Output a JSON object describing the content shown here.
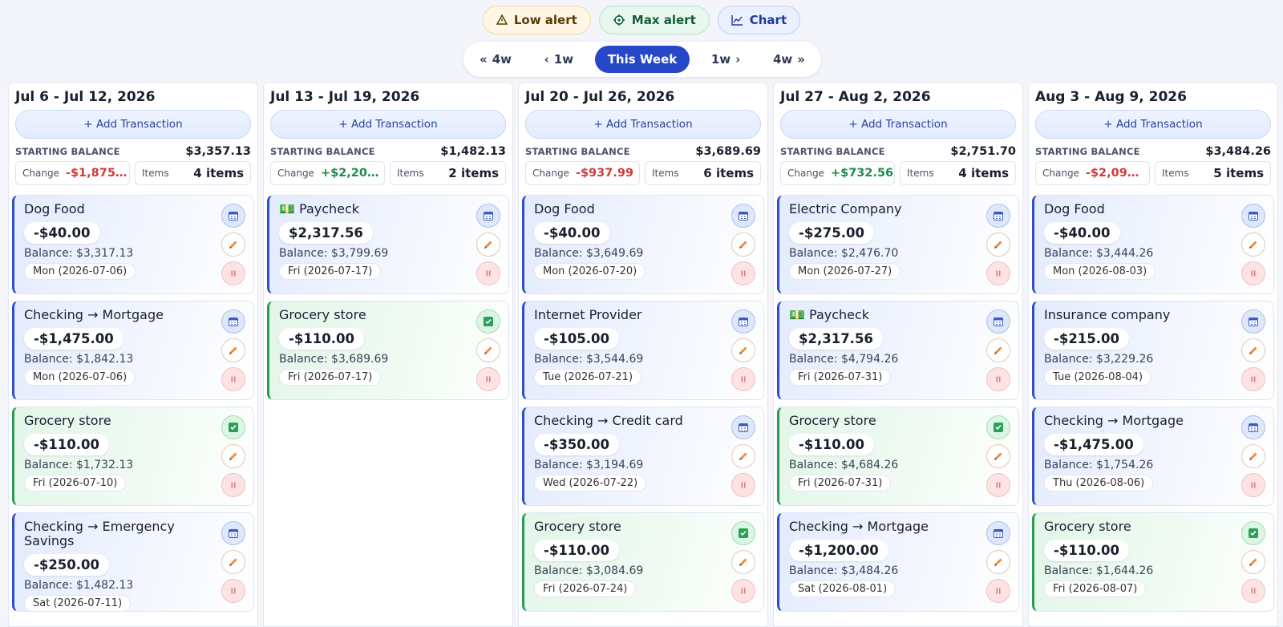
{
  "toolbar": {
    "low_alert": "Low alert",
    "max_alert": "Max alert",
    "chart": "Chart"
  },
  "nav": {
    "back4": "4w",
    "back1": "1w",
    "current": "This Week",
    "fwd1": "1w",
    "fwd4": "4w"
  },
  "weeks": [
    {
      "title": "Jul 6 - Jul 12, 2026",
      "add": "+ Add Transaction",
      "starting_label": "STARTING BALANCE",
      "starting_balance": "$3,357.13",
      "change_label": "Change",
      "change": "-$1,875…",
      "items_label": "Items",
      "items": "4 items",
      "transactions": [
        {
          "name": "Dog Food",
          "amount": "-$40.00",
          "balance": "Balance: $3,317.13",
          "date": "Mon (2026-07-06)",
          "cleared": false
        },
        {
          "name": "Checking → Mortgage",
          "amount": "-$1,475.00",
          "balance": "Balance: $1,842.13",
          "date": "Mon (2026-07-06)",
          "cleared": false
        },
        {
          "name": "Grocery store",
          "amount": "-$110.00",
          "balance": "Balance: $1,732.13",
          "date": "Fri (2026-07-10)",
          "cleared": true
        },
        {
          "name": "Checking → Emergency Savings",
          "amount": "-$250.00",
          "balance": "Balance: $1,482.13",
          "date": "Sat (2026-07-11)",
          "cleared": false
        }
      ]
    },
    {
      "title": "Jul 13 - Jul 19, 2026",
      "add": "+ Add Transaction",
      "starting_label": "STARTING BALANCE",
      "starting_balance": "$1,482.13",
      "change_label": "Change",
      "change": "+$2,20…",
      "items_label": "Items",
      "items": "2 items",
      "transactions": [
        {
          "name": "💵 Paycheck",
          "amount": "$2,317.56",
          "balance": "Balance: $3,799.69",
          "date": "Fri (2026-07-17)",
          "cleared": false
        },
        {
          "name": "Grocery store",
          "amount": "-$110.00",
          "balance": "Balance: $3,689.69",
          "date": "Fri (2026-07-17)",
          "cleared": true
        }
      ]
    },
    {
      "title": "Jul 20 - Jul 26, 2026",
      "add": "+ Add Transaction",
      "starting_label": "STARTING BALANCE",
      "starting_balance": "$3,689.69",
      "change_label": "Change",
      "change": "-$937.99",
      "items_label": "Items",
      "items": "6 items",
      "transactions": [
        {
          "name": "Dog Food",
          "amount": "-$40.00",
          "balance": "Balance: $3,649.69",
          "date": "Mon (2026-07-20)",
          "cleared": false
        },
        {
          "name": "Internet Provider",
          "amount": "-$105.00",
          "balance": "Balance: $3,544.69",
          "date": "Tue (2026-07-21)",
          "cleared": false
        },
        {
          "name": "Checking → Credit card",
          "amount": "-$350.00",
          "balance": "Balance: $3,194.69",
          "date": "Wed (2026-07-22)",
          "cleared": false
        },
        {
          "name": "Grocery store",
          "amount": "-$110.00",
          "balance": "Balance: $3,084.69",
          "date": "Fri (2026-07-24)",
          "cleared": true
        }
      ]
    },
    {
      "title": "Jul 27 - Aug 2, 2026",
      "add": "+ Add Transaction",
      "starting_label": "STARTING BALANCE",
      "starting_balance": "$2,751.70",
      "change_label": "Change",
      "change": "+$732.56",
      "items_label": "Items",
      "items": "4 items",
      "transactions": [
        {
          "name": "Electric Company",
          "amount": "-$275.00",
          "balance": "Balance: $2,476.70",
          "date": "Mon (2026-07-27)",
          "cleared": false
        },
        {
          "name": "💵 Paycheck",
          "amount": "$2,317.56",
          "balance": "Balance: $4,794.26",
          "date": "Fri (2026-07-31)",
          "cleared": false
        },
        {
          "name": "Grocery store",
          "amount": "-$110.00",
          "balance": "Balance: $4,684.26",
          "date": "Fri (2026-07-31)",
          "cleared": true
        },
        {
          "name": "Checking → Mortgage",
          "amount": "-$1,200.00",
          "balance": "Balance: $3,484.26",
          "date": "Sat (2026-08-01)",
          "cleared": false
        }
      ]
    },
    {
      "title": "Aug 3 - Aug 9, 2026",
      "add": "+ Add Transaction",
      "starting_label": "STARTING BALANCE",
      "starting_balance": "$3,484.26",
      "change_label": "Change",
      "change": "-$2,09…",
      "items_label": "Items",
      "items": "5 items",
      "transactions": [
        {
          "name": "Dog Food",
          "amount": "-$40.00",
          "balance": "Balance: $3,444.26",
          "date": "Mon (2026-08-03)",
          "cleared": false
        },
        {
          "name": "Insurance company",
          "amount": "-$215.00",
          "balance": "Balance: $3,229.26",
          "date": "Tue (2026-08-04)",
          "cleared": false
        },
        {
          "name": "Checking → Mortgage",
          "amount": "-$1,475.00",
          "balance": "Balance: $1,754.26",
          "date": "Thu (2026-08-06)",
          "cleared": false
        },
        {
          "name": "Grocery store",
          "amount": "-$110.00",
          "balance": "Balance: $1,644.26",
          "date": "Fri (2026-08-07)",
          "cleared": true
        }
      ]
    }
  ]
}
